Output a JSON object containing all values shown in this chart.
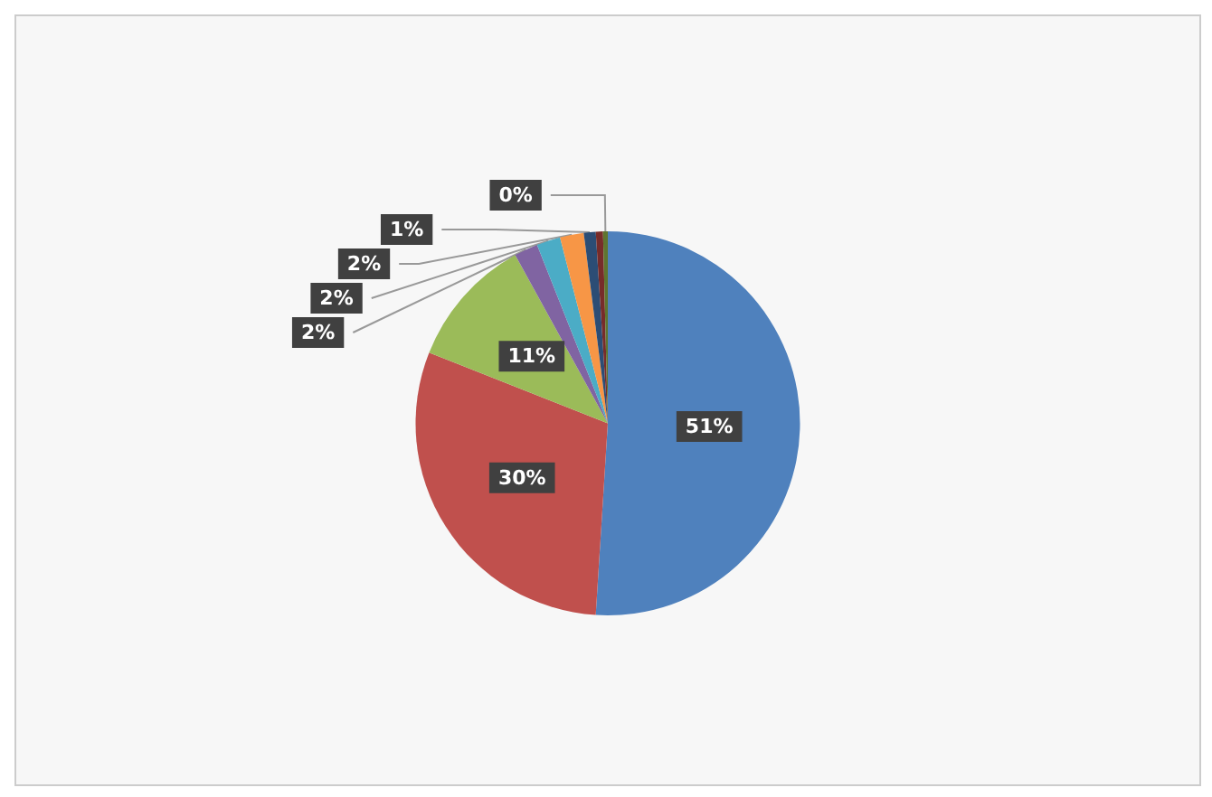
{
  "chart_data": {
    "type": "pie",
    "categories": [
      null,
      null,
      null,
      null,
      null,
      null,
      null,
      null,
      null
    ],
    "values": [
      51,
      30,
      11,
      2,
      2,
      2,
      1,
      0.6,
      0.4
    ],
    "colors": [
      "#4f81bd",
      "#c0504d",
      "#9bbb59",
      "#8064a2",
      "#4bacc6",
      "#f79646",
      "#2c4d75",
      "#772c2a",
      "#5f7530"
    ],
    "value_labels": [
      "51%",
      "30%",
      "11%",
      "2%",
      "2%",
      "2%",
      "1%",
      null,
      "0%"
    ]
  }
}
